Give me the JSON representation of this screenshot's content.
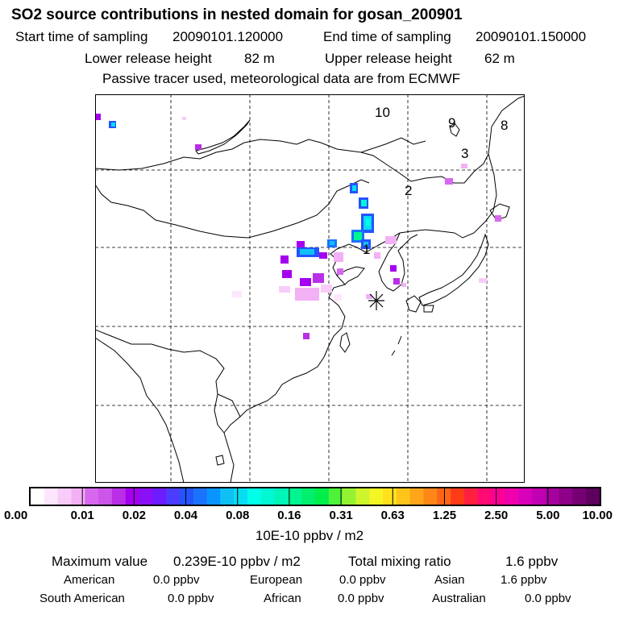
{
  "header": {
    "title": "SO2 source contributions in nested domain for gosan_200901",
    "start_label": "Start time of sampling",
    "start_value": "20090101.120000",
    "end_label": "End time of sampling",
    "end_value": "20090101.150000",
    "lower_label": "Lower release height",
    "lower_value": "82 m",
    "upper_label": "Upper release height",
    "upper_value": "62 m",
    "note": "Passive tracer used, meteorological data are from ECMWF"
  },
  "map": {
    "region_labels": [
      "1",
      "2",
      "3",
      "8",
      "9",
      "10"
    ],
    "receptor_marker": "asterisk",
    "colors": {
      "land_outline": "#000000",
      "grid": "#000000"
    }
  },
  "colorbar": {
    "tick_labels": [
      "0.00",
      "0.01",
      "0.02",
      "0.04",
      "0.08",
      "0.16",
      "0.31",
      "0.63",
      "1.25",
      "2.50",
      "5.00",
      "10.00"
    ],
    "colors": [
      "#ffffff",
      "#fde6fd",
      "#f8ccf8",
      "#f3b0f5",
      "#d768ee",
      "#cc55ea",
      "#b92ee6",
      "#a500f0",
      "#8a10f5",
      "#6d1bff",
      "#4d3cff",
      "#2453ff",
      "#1a72ff",
      "#0995ff",
      "#10c0f5",
      "#08dcf2",
      "#00ffe9",
      "#00f8d2",
      "#00f5b8",
      "#00f592",
      "#00f06d",
      "#00ee49",
      "#4ef23a",
      "#95f232",
      "#cff52c",
      "#f3f524",
      "#ffe11e",
      "#ffc41a",
      "#ffa519",
      "#ff8717",
      "#ff6516",
      "#ff3c18",
      "#ff2040",
      "#ff0a72",
      "#ff0096",
      "#f000ad",
      "#d800b8",
      "#c000b2",
      "#a5009d",
      "#8d0088",
      "#760072",
      "#5d005e"
    ],
    "unit": "10E-10 ppbv / m2"
  },
  "footer": {
    "max_label": "Maximum value",
    "max_value": "0.239E-10 ppbv / m2",
    "total_label": "Total mixing ratio",
    "total_value": "1.6 ppbv",
    "regions": [
      {
        "name": "American",
        "value": "0.0 ppbv"
      },
      {
        "name": "European",
        "value": "0.0 ppbv"
      },
      {
        "name": "Asian",
        "value": "1.6 ppbv"
      },
      {
        "name": "South American",
        "value": "0.0 ppbv"
      },
      {
        "name": "African",
        "value": "0.0 ppbv"
      },
      {
        "name": "Australian",
        "value": "0.0 ppbv"
      }
    ]
  }
}
